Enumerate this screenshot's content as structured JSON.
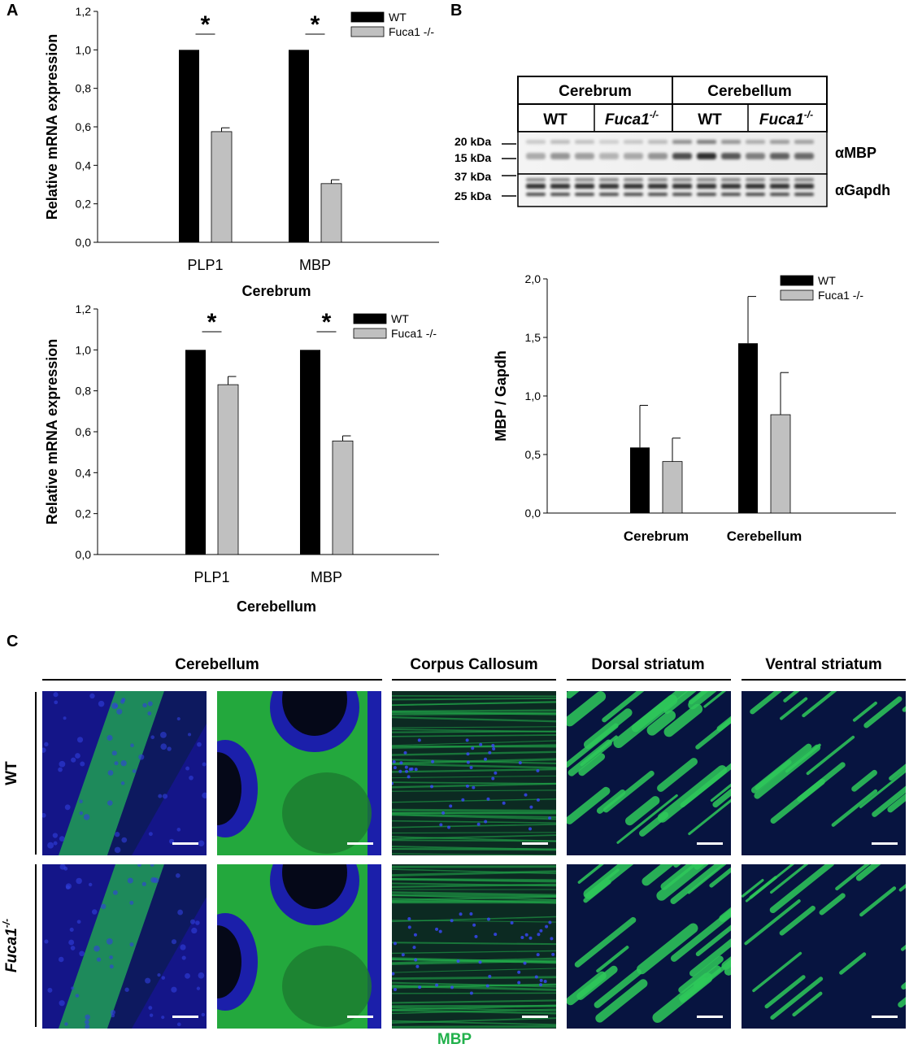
{
  "panels": {
    "a": "A",
    "b": "B",
    "c": "C"
  },
  "legend": {
    "wt": "WT",
    "ko": "Fuca1 -/-"
  },
  "colors": {
    "wt": "#000000",
    "ko": "#c0c0c0",
    "mbp_green": "#22b14c",
    "nuclear_blue": "#1a1aa8"
  },
  "chart_data": [
    {
      "type": "bar",
      "panel": "A",
      "title": "Cerebrum",
      "ylabel": "Relative mRNA expression",
      "xlabel": "Cerebrum",
      "categories": [
        "PLP1",
        "MBP"
      ],
      "ylim": [
        0,
        1.2
      ],
      "yticks": [
        "0,0",
        "0,2",
        "0,4",
        "0,6",
        "0,8",
        "1,0",
        "1,2"
      ],
      "series": [
        {
          "name": "WT",
          "values": [
            1.0,
            1.0
          ],
          "errors": [
            0,
            0
          ]
        },
        {
          "name": "Fuca1 -/-",
          "values": [
            0.575,
            0.305
          ],
          "errors": [
            0.02,
            0.02
          ]
        }
      ],
      "significance": [
        "*",
        "*"
      ],
      "legend_position": "top-right"
    },
    {
      "type": "bar",
      "panel": "A",
      "title": "Cerebellum",
      "ylabel": "Relative mRNA expression",
      "xlabel": "Cerebellum",
      "categories": [
        "PLP1",
        "MBP"
      ],
      "ylim": [
        0,
        1.2
      ],
      "yticks": [
        "0,0",
        "0,2",
        "0,4",
        "0,6",
        "0,8",
        "1,0",
        "1,2"
      ],
      "series": [
        {
          "name": "WT",
          "values": [
            1.0,
            1.0
          ],
          "errors": [
            0,
            0
          ]
        },
        {
          "name": "Fuca1 -/-",
          "values": [
            0.83,
            0.555
          ],
          "errors": [
            0.04,
            0.025
          ]
        }
      ],
      "significance": [
        "*",
        "*"
      ],
      "legend_position": "top-right"
    },
    {
      "type": "bar",
      "panel": "B",
      "ylabel": "MBP / Gapdh",
      "xlabel": "",
      "categories": [
        "Cerebrum",
        "Cerebellum"
      ],
      "ylim": [
        0,
        2.0
      ],
      "yticks": [
        "0,0",
        "0,5",
        "1,0",
        "1,5",
        "2,0"
      ],
      "series": [
        {
          "name": "WT",
          "values": [
            0.56,
            1.45
          ],
          "errors": [
            0.36,
            0.4
          ]
        },
        {
          "name": "Fuca1 -/-",
          "values": [
            0.44,
            0.84
          ],
          "errors": [
            0.2,
            0.36
          ]
        }
      ],
      "legend_position": "top-right"
    }
  ],
  "blot": {
    "regions": [
      "Cerebrum",
      "Cerebellum"
    ],
    "genotypes": [
      "WT",
      "Fuca1",
      "WT",
      "Fuca1"
    ],
    "genotype_sup": "-/-",
    "markers": [
      "20 kDa",
      "15 kDa",
      "37 kDa",
      "25 kDa"
    ],
    "antibodies": [
      "αMBP",
      "αGapdh"
    ]
  },
  "panel_c": {
    "regions": [
      "Cerebellum",
      "Corpus Callosum",
      "Dorsal striatum",
      "Ventral striatum"
    ],
    "rows": {
      "wt": "WT",
      "ko": "Fuca1",
      "ko_sup": "-/-"
    },
    "stain_label": "MBP"
  }
}
